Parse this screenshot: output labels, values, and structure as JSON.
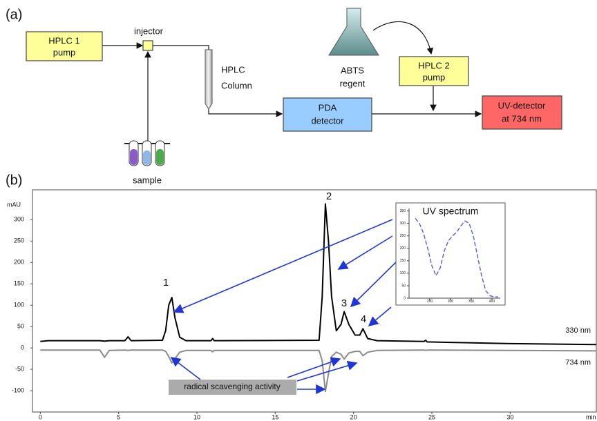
{
  "panel_a": {
    "label": "(a)",
    "nodes": [
      {
        "lines": [
          "HPLC 1",
          "pump"
        ]
      },
      {
        "lines": [
          "injector"
        ]
      },
      {
        "lines": [
          "HPLC",
          "Column"
        ]
      },
      {
        "lines": [
          "PDA",
          "detector"
        ]
      },
      {
        "lines": [
          "ABTS",
          "regent"
        ]
      },
      {
        "lines": [
          "HPLC 2",
          "pump"
        ]
      },
      {
        "lines": [
          "UV-detector",
          "at 734 nm"
        ]
      },
      {
        "lines": [
          "sample"
        ]
      }
    ]
  },
  "panel_b": {
    "label": "(b)",
    "annotation": "radical scavenging activity",
    "peak_labels": [
      "1",
      "2",
      "3",
      "4"
    ]
  },
  "chart_data": [
    {
      "type": "line",
      "y_label": "mAU",
      "x_label": "min",
      "x": [
        0,
        0.5,
        3.8,
        4.1,
        4.4,
        5.4,
        5.6,
        5.8,
        7.8,
        8.0,
        8.2,
        8.4,
        8.6,
        8.9,
        9.3,
        10.9,
        11.0,
        11.1,
        17.8,
        18.0,
        18.2,
        18.4,
        18.6,
        18.9,
        19.2,
        19.4,
        19.7,
        20.1,
        20.4,
        20.6,
        20.9,
        21.5,
        24.5,
        24.6,
        24.7,
        30,
        35.5
      ],
      "series": [
        {
          "name": "330 nm",
          "color": "#000000",
          "values": [
            15,
            17,
            17,
            16,
            17,
            17,
            26,
            17,
            18,
            40,
            100,
            118,
            70,
            25,
            17,
            17,
            22,
            17,
            18,
            120,
            337,
            250,
            120,
            40,
            55,
            85,
            55,
            30,
            30,
            45,
            22,
            17,
            15,
            18,
            14,
            10,
            8
          ]
        },
        {
          "name": "734 nm",
          "color": "#8a8a8a",
          "values": [
            -5,
            -5,
            -5,
            -22,
            -6,
            -5,
            -6,
            -5,
            -5,
            -8,
            -20,
            -35,
            -25,
            -10,
            -6,
            -6,
            -9,
            -6,
            -6,
            -30,
            -102,
            -60,
            -20,
            -10,
            -15,
            -26,
            -12,
            -8,
            -8,
            -18,
            -10,
            -6,
            -5,
            -6,
            -5,
            -6,
            -7
          ]
        }
      ],
      "xlim": [
        -0.5,
        35.5
      ],
      "ylim": [
        -150,
        370
      ],
      "xticks": [
        0,
        5,
        10,
        15,
        20,
        25,
        30
      ],
      "yticks": [
        -100,
        -50,
        0,
        50,
        100,
        150,
        200,
        250,
        300
      ]
    },
    {
      "type": "line",
      "title": "UV spectrum",
      "x": [
        215,
        225,
        235,
        245,
        255,
        265,
        275,
        285,
        295,
        305,
        315,
        325,
        335,
        345,
        355,
        365,
        375,
        385,
        395,
        405,
        415
      ],
      "series": [
        {
          "color": "#5a5ad8",
          "values": [
            320,
            300,
            260,
            200,
            130,
            90,
            120,
            190,
            230,
            250,
            265,
            290,
            310,
            300,
            250,
            170,
            90,
            30,
            10,
            5,
            5
          ]
        }
      ],
      "xlim": [
        200,
        420
      ],
      "ylim": [
        0,
        360
      ],
      "xticks": [
        250,
        300,
        350,
        400
      ],
      "yticks": [
        0,
        50,
        100,
        150,
        200,
        250,
        300,
        350
      ]
    }
  ]
}
